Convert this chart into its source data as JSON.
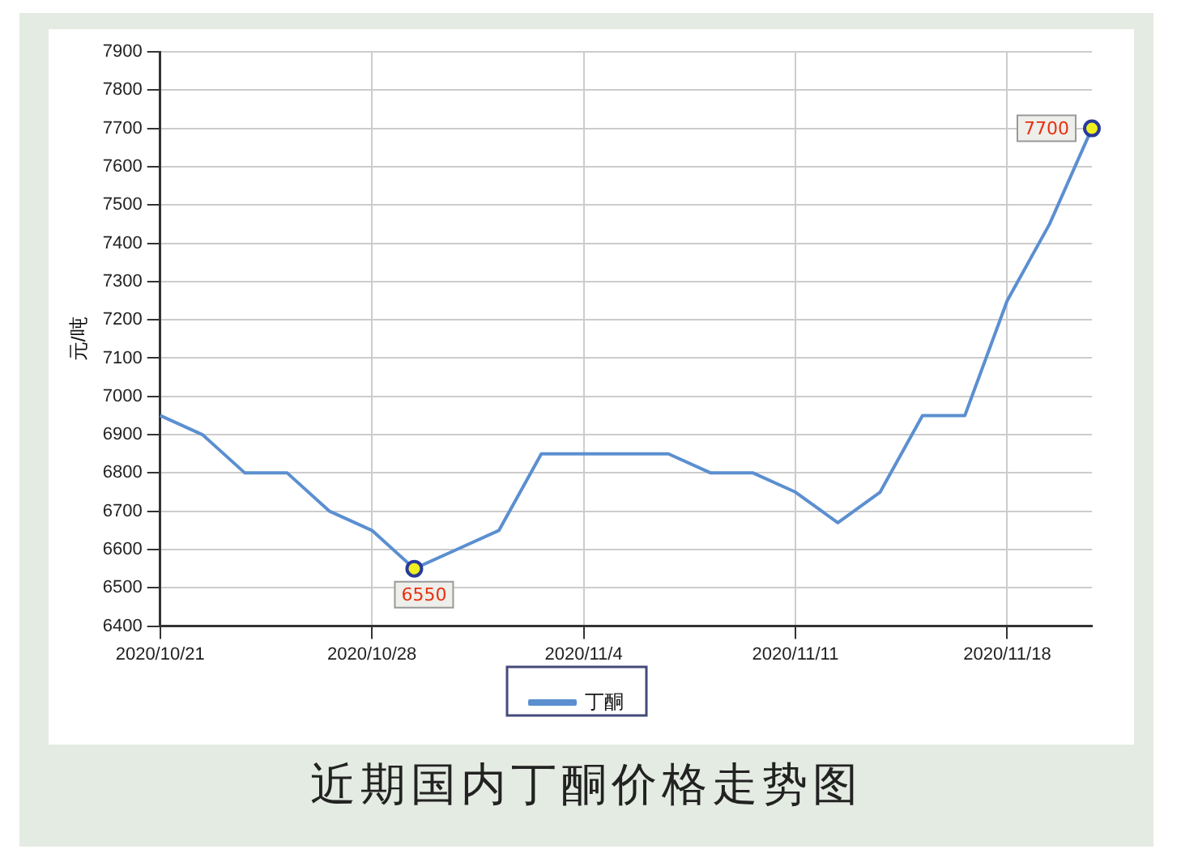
{
  "chart_data": {
    "type": "line",
    "title": "近期国内丁酮价格走势图",
    "ylabel": "元/吨",
    "categories": [
      "2020/10/21",
      null,
      null,
      null,
      null,
      "2020/10/28",
      null,
      null,
      null,
      null,
      "2020/11/4",
      null,
      null,
      null,
      null,
      "2020/11/11",
      null,
      null,
      null,
      null,
      "2020/11/18",
      null,
      null
    ],
    "series": [
      {
        "name": "丁酮",
        "color": "#5b8fd0",
        "values": [
          6950,
          6900,
          6800,
          6800,
          6700,
          6650,
          6550,
          6600,
          6650,
          6850,
          6850,
          6850,
          6850,
          6800,
          6800,
          6750,
          6670,
          6750,
          6950,
          6950,
          7250,
          7450,
          7700
        ],
        "value_labels": [
          null,
          null,
          null,
          null,
          null,
          null,
          "6550",
          null,
          null,
          null,
          null,
          null,
          null,
          null,
          null,
          null,
          null,
          null,
          null,
          null,
          null,
          null,
          "7700"
        ]
      }
    ],
    "ylim": [
      6400,
      7900
    ],
    "yticks": [
      6400,
      6500,
      6600,
      6700,
      6800,
      6900,
      7000,
      7100,
      7200,
      7300,
      7400,
      7500,
      7600,
      7700,
      7800,
      7900
    ],
    "grid": true,
    "legend": "bottom"
  }
}
